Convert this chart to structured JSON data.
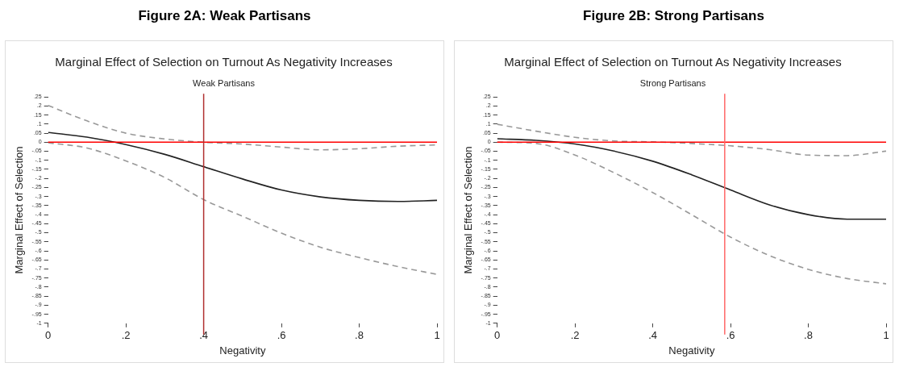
{
  "chart_data": [
    {
      "type": "line",
      "title": "Figure 2A: Weak Partisans",
      "subtitle": "Marginal Effect of Selection on Turnout As Negativity Increases",
      "annotations": [
        "Weak Partisans"
      ],
      "xlabel": "Negativity",
      "ylabel": "Marginal Effect of Selection",
      "x": [
        0,
        0.1,
        0.2,
        0.3,
        0.4,
        0.5,
        0.6,
        0.7,
        0.8,
        0.9,
        1
      ],
      "series": [
        {
          "color": "#222222",
          "line_style": "solid",
          "values": [
            0.054,
            0.028,
            -0.013,
            -0.067,
            -0.135,
            -0.203,
            -0.264,
            -0.302,
            -0.321,
            -0.327,
            -0.321
          ]
        },
        {
          "color": "#999999",
          "line_style": "dashed",
          "values": [
            0.203,
            0.118,
            0.05,
            0.018,
            0,
            -0.01,
            -0.027,
            -0.042,
            -0.036,
            -0.022,
            -0.015
          ]
        },
        {
          "color": "#999999",
          "line_style": "dashed",
          "values": [
            -0.003,
            -0.032,
            -0.103,
            -0.195,
            -0.317,
            -0.409,
            -0.502,
            -0.58,
            -0.637,
            -0.687,
            -0.73
          ]
        }
      ],
      "xlim": [
        0,
        1
      ],
      "xticks": [
        {
          "value": 0,
          "label": "0"
        },
        {
          "value": 0.2,
          "label": ".2"
        },
        {
          "value": 0.4,
          "label": ".4"
        },
        {
          "value": 0.6,
          "label": ".6"
        },
        {
          "value": 0.8,
          "label": ".8"
        },
        {
          "value": 1,
          "label": "1"
        }
      ],
      "ylim": [
        -1,
        0.25
      ],
      "yticks": [
        {
          "value": -1,
          "label": "-1"
        },
        {
          "value": -0.95,
          "label": "-.95"
        },
        {
          "value": -0.9,
          "label": "-.9"
        },
        {
          "value": -0.85,
          "label": "-.85"
        },
        {
          "value": -0.8,
          "label": "-.8"
        },
        {
          "value": -0.75,
          "label": "-.75"
        },
        {
          "value": -0.7,
          "label": "-.7"
        },
        {
          "value": -0.65,
          "label": "-.65"
        },
        {
          "value": -0.6,
          "label": "-.6"
        },
        {
          "value": -0.55,
          "label": "-.55"
        },
        {
          "value": -0.5,
          "label": "-.5"
        },
        {
          "value": -0.45,
          "label": "-.45"
        },
        {
          "value": -0.4,
          "label": "-.4"
        },
        {
          "value": -0.35,
          "label": "-.35"
        },
        {
          "value": -0.3,
          "label": "-.3"
        },
        {
          "value": -0.25,
          "label": "-.25"
        },
        {
          "value": -0.2,
          "label": "-.2"
        },
        {
          "value": -0.15,
          "label": "-.15"
        },
        {
          "value": -0.1,
          "label": "-.1"
        },
        {
          "value": -0.05,
          "label": "-.05"
        },
        {
          "value": 0,
          "label": "0"
        },
        {
          "value": 0.05,
          "label": ".05"
        },
        {
          "value": 0.1,
          "label": ".1"
        },
        {
          "value": 0.15,
          "label": ".15"
        },
        {
          "value": 0.2,
          "label": ".2"
        },
        {
          "value": 0.25,
          "label": ".25"
        }
      ],
      "ref_lines": [
        {
          "axis": "y",
          "value": 0,
          "color": "#ff0000"
        },
        {
          "axis": "x",
          "value": 0.4,
          "color": "#b03030"
        }
      ],
      "grid": false,
      "legend": false,
      "marker": "none"
    },
    {
      "type": "line",
      "title": "Figure 2B: Strong Partisans",
      "subtitle": "Marginal Effect of Selection on Turnout As Negativity Increases",
      "annotations": [
        "Strong Partisans"
      ],
      "xlabel": "Negativity",
      "ylabel": "Marginal Effect of Selection",
      "x": [
        0,
        0.1,
        0.2,
        0.3,
        0.4,
        0.5,
        0.6,
        0.7,
        0.8,
        0.9,
        1
      ],
      "series": [
        {
          "color": "#222222",
          "line_style": "solid",
          "values": [
            0.019,
            0.01,
            -0.01,
            -0.049,
            -0.105,
            -0.18,
            -0.264,
            -0.346,
            -0.4,
            -0.425,
            -0.425
          ]
        },
        {
          "color": "#999999",
          "line_style": "dashed",
          "values": [
            0.099,
            0.061,
            0.027,
            0.007,
            0.002,
            -0.007,
            -0.02,
            -0.041,
            -0.071,
            -0.074,
            -0.049
          ]
        },
        {
          "color": "#999999",
          "line_style": "dashed",
          "values": [
            0,
            -0.007,
            -0.071,
            -0.168,
            -0.278,
            -0.4,
            -0.524,
            -0.626,
            -0.702,
            -0.753,
            -0.782
          ]
        }
      ],
      "xlim": [
        0,
        1
      ],
      "xticks": [
        {
          "value": 0,
          "label": "0"
        },
        {
          "value": 0.2,
          "label": ".2"
        },
        {
          "value": 0.4,
          "label": ".4"
        },
        {
          "value": 0.6,
          "label": ".6"
        },
        {
          "value": 0.8,
          "label": ".8"
        },
        {
          "value": 1,
          "label": "1"
        }
      ],
      "ylim": [
        -1,
        0.25
      ],
      "yticks": [
        {
          "value": -1,
          "label": "-1"
        },
        {
          "value": -0.95,
          "label": "-.95"
        },
        {
          "value": -0.9,
          "label": "-.9"
        },
        {
          "value": -0.85,
          "label": "-.85"
        },
        {
          "value": -0.8,
          "label": "-.8"
        },
        {
          "value": -0.75,
          "label": "-.75"
        },
        {
          "value": -0.7,
          "label": "-.7"
        },
        {
          "value": -0.65,
          "label": "-.65"
        },
        {
          "value": -0.6,
          "label": "-.6"
        },
        {
          "value": -0.55,
          "label": "-.55"
        },
        {
          "value": -0.5,
          "label": "-.5"
        },
        {
          "value": -0.45,
          "label": "-.45"
        },
        {
          "value": -0.4,
          "label": "-.4"
        },
        {
          "value": -0.35,
          "label": "-.35"
        },
        {
          "value": -0.3,
          "label": "-.3"
        },
        {
          "value": -0.25,
          "label": "-.25"
        },
        {
          "value": -0.2,
          "label": "-.2"
        },
        {
          "value": -0.15,
          "label": "-.15"
        },
        {
          "value": -0.1,
          "label": "-.1"
        },
        {
          "value": -0.05,
          "label": "-.05"
        },
        {
          "value": 0,
          "label": "0"
        },
        {
          "value": 0.05,
          "label": ".05"
        },
        {
          "value": 0.1,
          "label": ".1"
        },
        {
          "value": 0.15,
          "label": ".15"
        },
        {
          "value": 0.2,
          "label": ".2"
        },
        {
          "value": 0.25,
          "label": ".25"
        }
      ],
      "ref_lines": [
        {
          "axis": "y",
          "value": 0,
          "color": "#ff0000"
        },
        {
          "axis": "x",
          "value": 0.585,
          "color": "#ff6666"
        }
      ],
      "grid": false,
      "legend": false,
      "marker": "none"
    }
  ]
}
